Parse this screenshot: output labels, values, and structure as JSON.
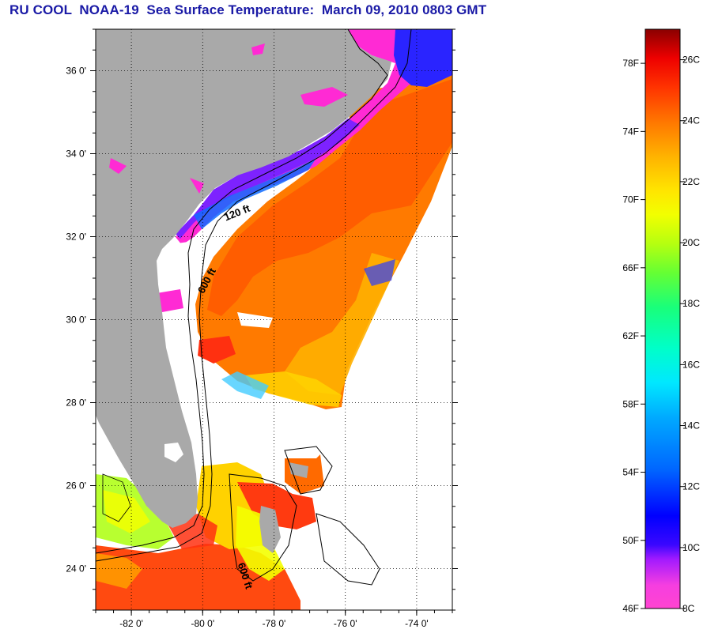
{
  "header": {
    "title": "RU COOL  NOAA-19  Sea Surface Temperature:  March 09, 2010 0803 GMT"
  },
  "map": {
    "lon_range": [
      -83.0,
      -73.0
    ],
    "lat_range": [
      23.0,
      37.0
    ],
    "x_ticks": [
      {
        "lon": -82,
        "label": "-82 0'"
      },
      {
        "lon": -80,
        "label": "-80 0'"
      },
      {
        "lon": -78,
        "label": "-78 0'"
      },
      {
        "lon": -76,
        "label": "-76 0'"
      },
      {
        "lon": -74,
        "label": "-74 0'"
      }
    ],
    "y_ticks": [
      {
        "lat": 36,
        "label": "36 0'"
      },
      {
        "lat": 34,
        "label": "34 0'"
      },
      {
        "lat": 32,
        "label": "32 0'"
      },
      {
        "lat": 30,
        "label": "30 0'"
      },
      {
        "lat": 28,
        "label": "28 0'"
      },
      {
        "lat": 26,
        "label": "26 0'"
      },
      {
        "lat": 24,
        "label": "24 0'"
      }
    ],
    "grid": "dotted",
    "contour_labels": [
      {
        "text": "120 ft",
        "lon": -79.0,
        "lat": 32.5,
        "angle": -22
      },
      {
        "text": "600 ft",
        "lon": -79.8,
        "lat": 30.9,
        "angle": -62
      },
      {
        "text": "600 ft",
        "lon": -78.9,
        "lat": 23.8,
        "angle": 72
      }
    ],
    "colors": {
      "land": "#a9a9a9",
      "cloud": "#ffffff",
      "gulf_stream": "#ff6a00",
      "shelf_cold": "#ff2ad4",
      "nearshore": "#7d22ff"
    }
  },
  "colorbar": {
    "range_f": [
      46,
      80
    ],
    "range_c": [
      8,
      27
    ],
    "f_ticks": [
      {
        "value": 78,
        "label": "78F"
      },
      {
        "value": 74,
        "label": "74F"
      },
      {
        "value": 70,
        "label": "70F"
      },
      {
        "value": 66,
        "label": "66F"
      },
      {
        "value": 62,
        "label": "62F"
      },
      {
        "value": 58,
        "label": "58F"
      },
      {
        "value": 54,
        "label": "54F"
      },
      {
        "value": 50,
        "label": "50F"
      },
      {
        "value": 46,
        "label": "46F"
      }
    ],
    "c_ticks": [
      {
        "value": 26,
        "label": "26C"
      },
      {
        "value": 24,
        "label": "24C"
      },
      {
        "value": 22,
        "label": "22C"
      },
      {
        "value": 20,
        "label": "20C"
      },
      {
        "value": 18,
        "label": "18C"
      },
      {
        "value": 16,
        "label": "16C"
      },
      {
        "value": 14,
        "label": "14C"
      },
      {
        "value": 12,
        "label": "12C"
      },
      {
        "value": 10,
        "label": "10C"
      },
      {
        "value": 8,
        "label": "8C"
      }
    ]
  }
}
